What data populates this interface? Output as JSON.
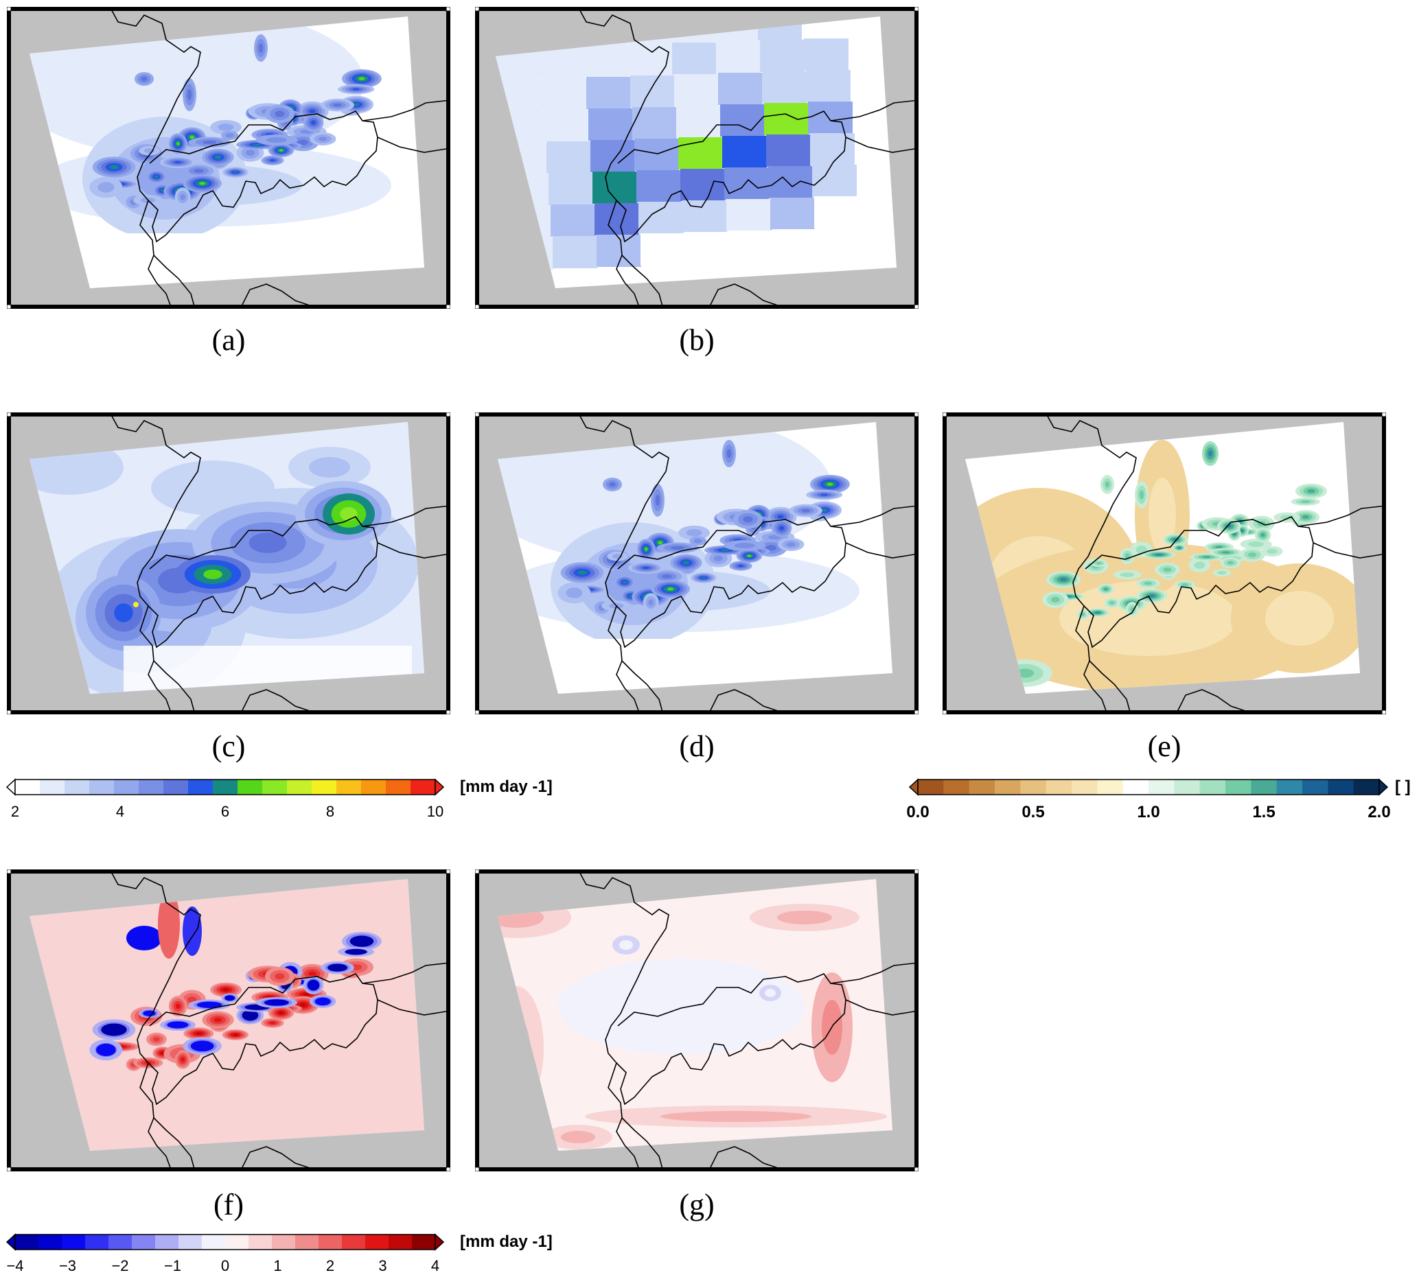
{
  "panels": [
    {
      "id": "a",
      "label": "(a)",
      "field": "fine-precip"
    },
    {
      "id": "b",
      "label": "(b)",
      "field": "coarse-precip"
    },
    {
      "id": "c",
      "label": "(c)",
      "field": "smooth-precip"
    },
    {
      "id": "d",
      "label": "(d)",
      "field": "fine-precip"
    },
    {
      "id": "e",
      "label": "(e)",
      "field": "ratio"
    },
    {
      "id": "f",
      "label": "(f)",
      "field": "difference-strong"
    },
    {
      "id": "g",
      "label": "(g)",
      "field": "difference-weak"
    }
  ],
  "colorbars": {
    "precip": {
      "unit": "[mm day -1]",
      "ticks": [
        "2",
        "4",
        "6",
        "8",
        "10"
      ],
      "range": [
        2,
        10
      ],
      "colors": [
        "#ffffff",
        "#e4ecfb",
        "#c8d6f6",
        "#aebff1",
        "#93a8ec",
        "#7a90e5",
        "#5f75dc",
        "#2456e8",
        "#168a82",
        "#55d61a",
        "#8ae826",
        "#c8f02a",
        "#f4f020",
        "#f8c018",
        "#f89810",
        "#f46a10",
        "#ee2418"
      ]
    },
    "ratio": {
      "unit": "[ ]",
      "ticks": [
        "0.0",
        "0.5",
        "1.0",
        "1.5",
        "2.0"
      ],
      "range": [
        0,
        2
      ],
      "colors": [
        "#a0561e",
        "#b86e2c",
        "#c88a42",
        "#d8a65e",
        "#e6c07e",
        "#f0d49a",
        "#f6e2b2",
        "#fcf2cc",
        "#ffffff",
        "#e6f6ec",
        "#c8ecd6",
        "#a2e0c0",
        "#74cca6",
        "#4aaa96",
        "#3088a8",
        "#1c6498",
        "#0c427a",
        "#062a52"
      ]
    },
    "diff": {
      "unit": "[mm day -1]",
      "ticks": [
        "−4",
        "−3",
        "−2",
        "−1",
        "0",
        "1",
        "2",
        "3",
        "4"
      ],
      "range": [
        -4,
        4
      ],
      "colors": [
        "#0000a8",
        "#0000d0",
        "#0a0af2",
        "#3030f4",
        "#5858f4",
        "#8484f2",
        "#aeaef4",
        "#d4d4f8",
        "#f2f2fd",
        "#fdf0f0",
        "#f8d4d4",
        "#f4b2b2",
        "#f08c8c",
        "#ec6464",
        "#e83a3a",
        "#e01414",
        "#c00808",
        "#8e0000"
      ]
    }
  },
  "colors": {
    "frame": "#000000",
    "background": "#c0c0c0",
    "border_line": "#000000"
  }
}
